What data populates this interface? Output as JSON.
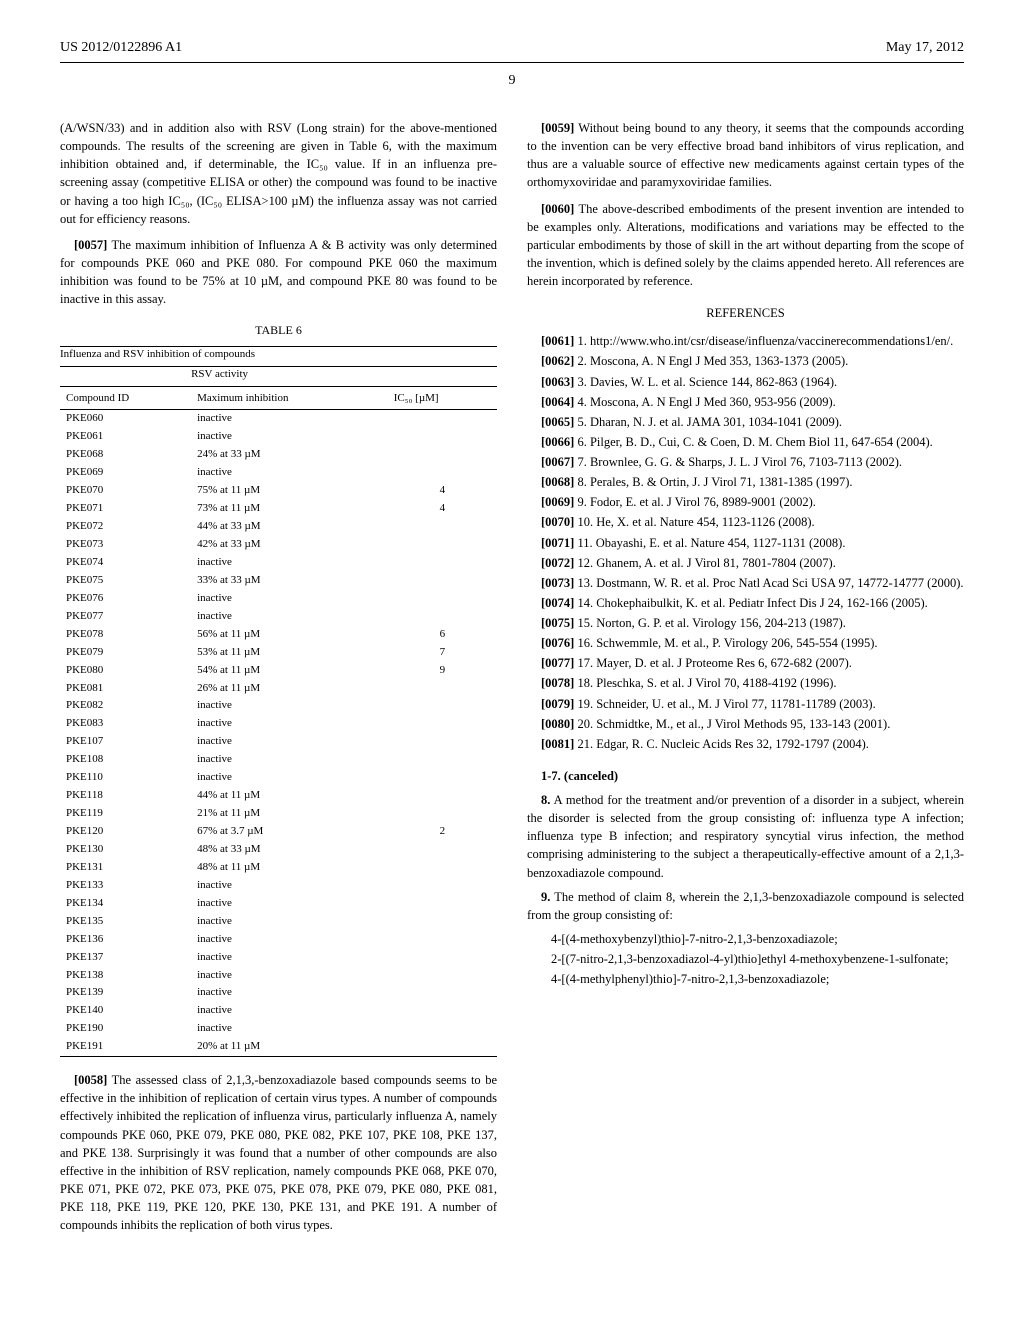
{
  "header": {
    "pub_number": "US 2012/0122896 A1",
    "pub_date": "May 17, 2012"
  },
  "page_number": "9",
  "left_col": {
    "p56": "(A/WSN/33) and in addition also with RSV (Long strain) for the above-mentioned compounds. The results of the screening are given in Table 6, with the maximum inhibition obtained and, if determinable, the IC₅₀ value. If in an influenza pre-screening assay (competitive ELISA or other) the compound was found to be inactive or having a too high IC₅₀, (IC₅₀ ELISA>100 µM) the influenza assay was not carried out for efficiency reasons.",
    "p57_num": "[0057]",
    "p57": "The maximum inhibition of Influenza A & B activity was only determined for compounds PKE 060 and PKE 080. For compound PKE 060 the maximum inhibition was found to be 75% at 10 µM, and compound PKE 80 was found to be inactive in this assay.",
    "table6": {
      "caption": "TABLE 6",
      "title": "Influenza and RSV inhibition of compounds",
      "group_header": "RSV activity",
      "col1": "Compound ID",
      "col2": "Maximum inhibition",
      "col3": "IC₅₀ [µM]",
      "rows": [
        {
          "id": "PKE060",
          "mi": "inactive",
          "ic": ""
        },
        {
          "id": "PKE061",
          "mi": "inactive",
          "ic": ""
        },
        {
          "id": "PKE068",
          "mi": "24% at 33 µM",
          "ic": ""
        },
        {
          "id": "PKE069",
          "mi": "inactive",
          "ic": ""
        },
        {
          "id": "PKE070",
          "mi": "75% at 11 µM",
          "ic": "4"
        },
        {
          "id": "PKE071",
          "mi": "73% at 11 µM",
          "ic": "4"
        },
        {
          "id": "PKE072",
          "mi": "44% at 33 µM",
          "ic": ""
        },
        {
          "id": "PKE073",
          "mi": "42% at 33 µM",
          "ic": ""
        },
        {
          "id": "PKE074",
          "mi": "inactive",
          "ic": ""
        },
        {
          "id": "PKE075",
          "mi": "33% at 33 µM",
          "ic": ""
        },
        {
          "id": "PKE076",
          "mi": "inactive",
          "ic": ""
        },
        {
          "id": "PKE077",
          "mi": "inactive",
          "ic": ""
        },
        {
          "id": "PKE078",
          "mi": "56% at 11 µM",
          "ic": "6"
        },
        {
          "id": "PKE079",
          "mi": "53% at 11 µM",
          "ic": "7"
        },
        {
          "id": "PKE080",
          "mi": "54% at 11 µM",
          "ic": "9"
        },
        {
          "id": "PKE081",
          "mi": "26% at 11 µM",
          "ic": ""
        },
        {
          "id": "PKE082",
          "mi": "inactive",
          "ic": ""
        },
        {
          "id": "PKE083",
          "mi": "inactive",
          "ic": ""
        },
        {
          "id": "PKE107",
          "mi": "inactive",
          "ic": ""
        },
        {
          "id": "PKE108",
          "mi": "inactive",
          "ic": ""
        },
        {
          "id": "PKE110",
          "mi": "inactive",
          "ic": ""
        },
        {
          "id": "PKE118",
          "mi": "44% at 11 µM",
          "ic": ""
        },
        {
          "id": "PKE119",
          "mi": "21% at 11 µM",
          "ic": ""
        },
        {
          "id": "PKE120",
          "mi": "67% at 3.7 µM",
          "ic": "2"
        },
        {
          "id": "PKE130",
          "mi": "48% at 33 µM",
          "ic": ""
        },
        {
          "id": "PKE131",
          "mi": "48% at 11 µM",
          "ic": ""
        },
        {
          "id": "PKE133",
          "mi": "inactive",
          "ic": ""
        },
        {
          "id": "PKE134",
          "mi": "inactive",
          "ic": ""
        },
        {
          "id": "PKE135",
          "mi": "inactive",
          "ic": ""
        },
        {
          "id": "PKE136",
          "mi": "inactive",
          "ic": ""
        },
        {
          "id": "PKE137",
          "mi": "inactive",
          "ic": ""
        },
        {
          "id": "PKE138",
          "mi": "inactive",
          "ic": ""
        },
        {
          "id": "PKE139",
          "mi": "inactive",
          "ic": ""
        },
        {
          "id": "PKE140",
          "mi": "inactive",
          "ic": ""
        },
        {
          "id": "PKE190",
          "mi": "inactive",
          "ic": ""
        },
        {
          "id": "PKE191",
          "mi": "20% at 11 µM",
          "ic": ""
        }
      ]
    },
    "p58_num": "[0058]",
    "p58": "The assessed class of 2,1,3,-benzoxadiazole based compounds seems to be effective in the inhibition of replication of certain virus types. A number of compounds effectively inhibited the replication of influenza virus, particularly influenza A, namely compounds PKE 060, PKE 079, PKE 080, PKE 082, PKE 107, PKE 108, PKE 137, and PKE 138. Surprisingly it was found that a number of other compounds are also effective in the inhibition of RSV replication, namely compounds PKE 068, PKE 070, PKE 071, PKE 072, PKE 073, PKE 075, PKE 078, PKE 079, PKE 080, PKE 081, PKE 118, PKE 119, PKE 120, PKE 130, PKE 131, and PKE 191. A number of compounds inhibits the replication of both virus types."
  },
  "right_col": {
    "p59_num": "[0059]",
    "p59": "Without being bound to any theory, it seems that the compounds according to the invention can be very effective broad band inhibitors of virus replication, and thus are a valuable source of effective new medicaments against certain types of the orthomyxoviridae and paramyxoviridae families.",
    "p60_num": "[0060]",
    "p60": "The above-described embodiments of the present invention are intended to be examples only. Alterations, modifications and variations may be effected to the particular embodiments by those of skill in the art without departing from the scope of the invention, which is defined solely by the claims appended hereto. All references are herein incorporated by reference.",
    "references_heading": "REFERENCES",
    "refs": [
      {
        "num": "[0061]",
        "text": "1. http://www.who.int/csr/disease/influenza/vaccinerecommendations1/en/."
      },
      {
        "num": "[0062]",
        "text": "2. Moscona, A. N Engl J Med 353, 1363-1373 (2005)."
      },
      {
        "num": "[0063]",
        "text": "3. Davies, W. L. et al. Science 144, 862-863 (1964)."
      },
      {
        "num": "[0064]",
        "text": "4. Moscona, A. N Engl J Med 360, 953-956 (2009)."
      },
      {
        "num": "[0065]",
        "text": "5. Dharan, N. J. et al. JAMA 301, 1034-1041 (2009)."
      },
      {
        "num": "[0066]",
        "text": "6. Pilger, B. D., Cui, C. & Coen, D. M. Chem Biol 11, 647-654 (2004)."
      },
      {
        "num": "[0067]",
        "text": "7. Brownlee, G. G. & Sharps, J. L. J Virol 76, 7103-7113 (2002)."
      },
      {
        "num": "[0068]",
        "text": "8. Perales, B. & Ortin, J. J Virol 71, 1381-1385 (1997)."
      },
      {
        "num": "[0069]",
        "text": "9. Fodor, E. et al. J Virol 76, 8989-9001 (2002)."
      },
      {
        "num": "[0070]",
        "text": "10. He, X. et al. Nature 454, 1123-1126 (2008)."
      },
      {
        "num": "[0071]",
        "text": "11. Obayashi, E. et al. Nature 454, 1127-1131 (2008)."
      },
      {
        "num": "[0072]",
        "text": "12. Ghanem, A. et al. J Virol 81, 7801-7804 (2007)."
      },
      {
        "num": "[0073]",
        "text": "13. Dostmann, W. R. et al. Proc Natl Acad Sci USA 97, 14772-14777 (2000)."
      },
      {
        "num": "[0074]",
        "text": "14. Chokephaibulkit, K. et al. Pediatr Infect Dis J 24, 162-166 (2005)."
      },
      {
        "num": "[0075]",
        "text": "15. Norton, G. P. et al. Virology 156, 204-213 (1987)."
      },
      {
        "num": "[0076]",
        "text": "16. Schwemmle, M. et al., P. Virology 206, 545-554 (1995)."
      },
      {
        "num": "[0077]",
        "text": "17. Mayer, D. et al. J Proteome Res 6, 672-682 (2007)."
      },
      {
        "num": "[0078]",
        "text": "18. Pleschka, S. et al. J Virol 70, 4188-4192 (1996)."
      },
      {
        "num": "[0079]",
        "text": "19. Schneider, U. et al., M. J Virol 77, 11781-11789 (2003)."
      },
      {
        "num": "[0080]",
        "text": "20. Schmidtke, M., et al., J Virol Methods 95, 133-143 (2001)."
      },
      {
        "num": "[0081]",
        "text": "21. Edgar, R. C. Nucleic Acids Res 32, 1792-1797 (2004)."
      }
    ],
    "claims": {
      "c1_7": "1-7. (canceled)",
      "c8_num": "8.",
      "c8": "A method for the treatment and/or prevention of a disorder in a subject, wherein the disorder is selected from the group consisting of: influenza type A infection; influenza type B infection; and respiratory syncytial virus infection, the method comprising administering to the subject a therapeutically-effective amount of a 2,1,3-benzoxadiazole compound.",
      "c9_num": "9.",
      "c9": "The method of claim 8, wherein the 2,1,3-benzoxadiazole compound is selected from the group consisting of:",
      "c9a": "4-[(4-methoxybenzyl)thio]-7-nitro-2,1,3-benzoxadiazole;",
      "c9b": "2-[(7-nitro-2,1,3-benzoxadiazol-4-yl)thio]ethyl 4-methoxybenzene-1-sulfonate;",
      "c9c": "4-[(4-methylphenyl)thio]-7-nitro-2,1,3-benzoxadiazole;"
    }
  }
}
